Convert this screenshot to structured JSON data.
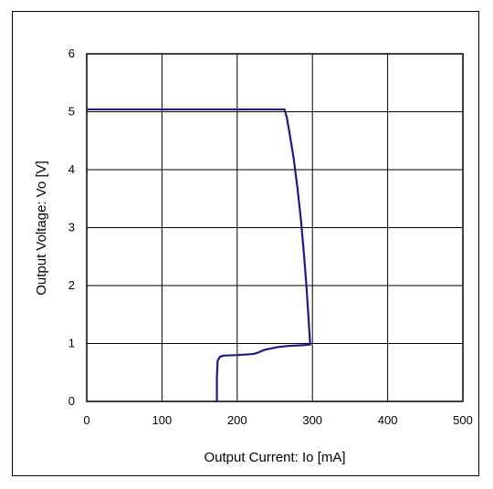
{
  "chart_data": {
    "type": "line",
    "title": "",
    "xlabel": "Output Current: Io [mA]",
    "ylabel": "Output Voltage: Vo [V]",
    "xlim": [
      0,
      500
    ],
    "ylim": [
      0,
      6
    ],
    "xticks": [
      "0",
      "100",
      "200",
      "300",
      "400",
      "500"
    ],
    "yticks": [
      "0",
      "1",
      "2",
      "3",
      "4",
      "5",
      "6"
    ],
    "grid": true,
    "legend": "none",
    "line_color": "#1a1a8c",
    "series": [
      {
        "x": [
          0,
          263,
          266,
          270,
          275,
          280,
          285,
          289,
          292,
          294,
          296,
          297,
          295,
          287,
          270,
          255,
          236,
          229,
          222,
          212,
          200,
          182,
          177,
          174,
          173,
          173,
          173
        ],
        "y": [
          5.04,
          5.04,
          4.9,
          4.6,
          4.2,
          3.7,
          3.1,
          2.5,
          2.0,
          1.6,
          1.2,
          0.98,
          0.98,
          0.97,
          0.96,
          0.94,
          0.89,
          0.85,
          0.82,
          0.81,
          0.8,
          0.79,
          0.77,
          0.7,
          0.4,
          0.1,
          0.0
        ]
      }
    ]
  }
}
